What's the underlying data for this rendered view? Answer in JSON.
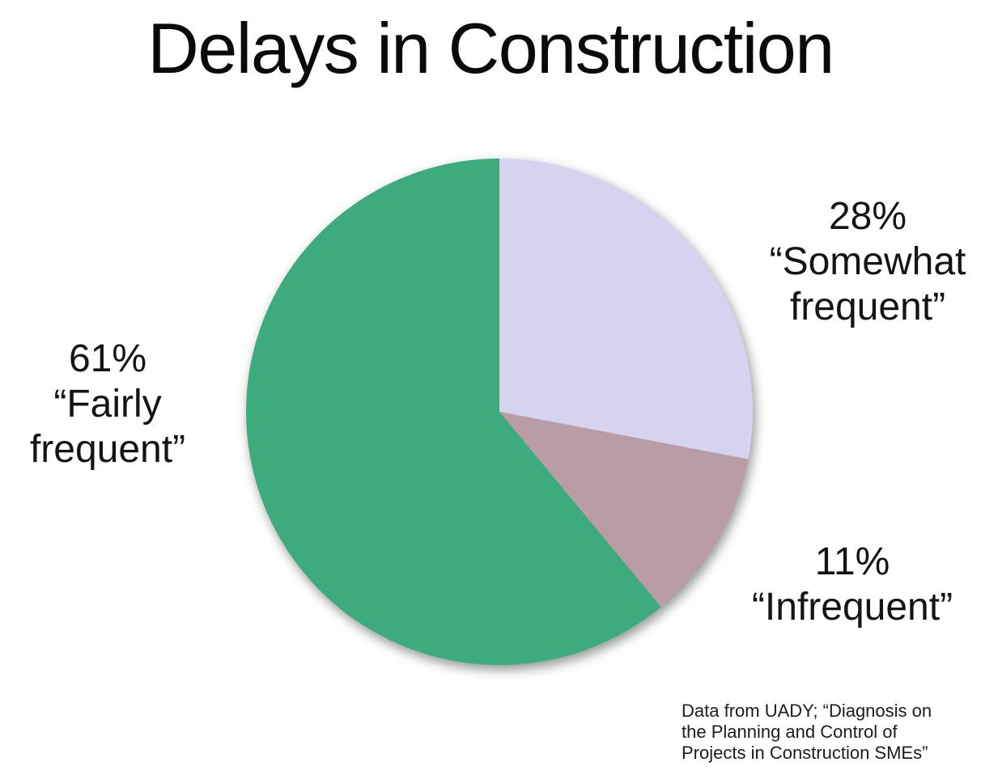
{
  "page": {
    "background_color": "#ffffff",
    "text_color": "#111111"
  },
  "chart_data": {
    "type": "pie",
    "title": "Delays in Construction",
    "start_angle": "12 o'clock",
    "direction": "clockwise",
    "legend_position": "none",
    "labels_style": "callouts outside pie",
    "slices": [
      {
        "label": "Somewhat frequent",
        "value_pct": 28,
        "color": "#d5d3f0",
        "callout_lines": [
          "28%",
          "“Somewhat",
          "frequent”"
        ]
      },
      {
        "label": "Infrequent",
        "value_pct": 11,
        "color": "#b99ca6",
        "callout_lines": [
          "11%",
          "“Infrequent”"
        ]
      },
      {
        "label": "Fairly frequent",
        "value_pct": 61,
        "color": "#3eab7e",
        "callout_lines": [
          "61%",
          "“Fairly",
          "frequent”"
        ]
      }
    ],
    "source_note": "Data from UADY; “Diagnosis on the Planning and Control of Projects in Construction SMEs”",
    "source_note_lines": [
      "Data from UADY; “Diagnosis on",
      "the Planning and Control of",
      "Projects in Construction SMEs”"
    ]
  }
}
